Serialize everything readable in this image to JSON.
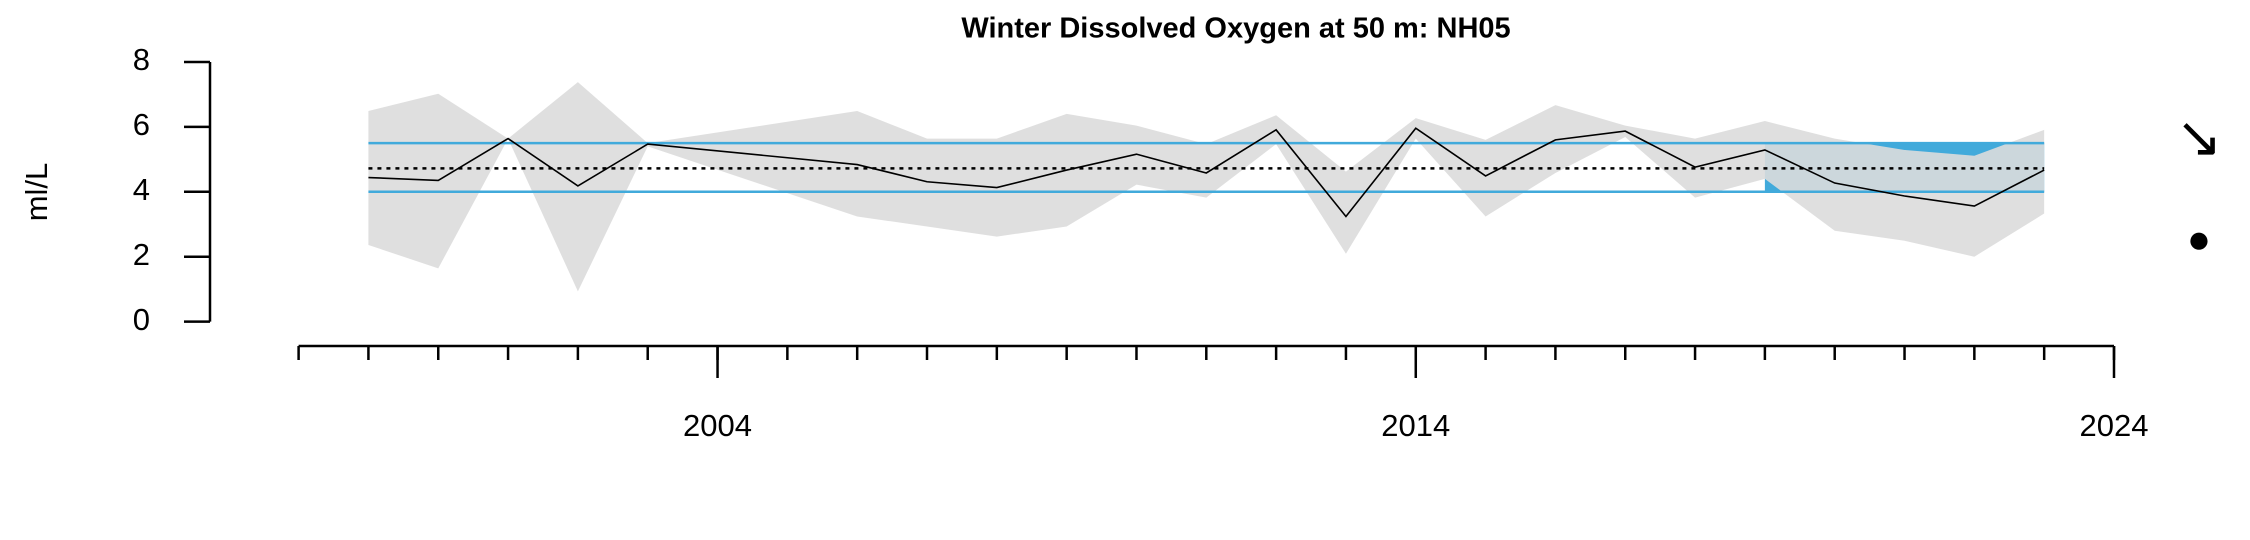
{
  "chart_data": {
    "type": "line",
    "title": "Winter Dissolved Oxygen at 50 m: NH05",
    "y_label": "ml/L",
    "x": [
      1999,
      2000,
      2001,
      2002,
      2003,
      2006,
      2007,
      2008,
      2009,
      2010,
      2011,
      2012,
      2013,
      2014,
      2015,
      2016,
      2017,
      2018,
      2019,
      2020,
      2021,
      2022,
      2023
    ],
    "values": [
      4.44,
      4.35,
      5.64,
      4.18,
      5.47,
      4.84,
      4.31,
      4.13,
      4.67,
      5.16,
      4.58,
      5.91,
      3.24,
      5.96,
      4.49,
      5.6,
      5.87,
      4.76,
      5.29,
      4.27,
      3.87,
      3.56,
      4.67
    ],
    "band_upper": [
      6.49,
      7.02,
      5.64,
      7.38,
      5.5,
      6.49,
      5.64,
      5.64,
      6.4,
      6.04,
      5.47,
      6.36,
      4.62,
      6.27,
      5.6,
      6.67,
      6.04,
      5.64,
      6.18,
      5.64,
      5.29,
      5.11,
      5.91
    ],
    "band_lower": [
      2.36,
      1.64,
      5.64,
      0.93,
      5.4,
      3.24,
      2.93,
      2.62,
      2.93,
      4.22,
      3.82,
      5.47,
      2.09,
      5.64,
      3.24,
      4.58,
      5.69,
      3.82,
      4.4,
      2.8,
      2.49,
      2.0,
      3.33
    ],
    "color": "#000000",
    "band_color": "#dcdcdc",
    "ref_color": "#41aadb",
    "mean": 4.72,
    "sd_upper": 5.5,
    "sd_lower": 4.0,
    "highlight_x": [
      2019,
      2023
    ],
    "xlim": [
      1998,
      2024
    ],
    "xticks": [
      2004,
      2014,
      2024
    ],
    "xminorticks": [
      1998,
      1999,
      2000,
      2001,
      2002,
      2003,
      2004,
      2005,
      2006,
      2007,
      2008,
      2009,
      2010,
      2011,
      2012,
      2013,
      2014,
      2015,
      2016,
      2017,
      2018,
      2019,
      2020,
      2021,
      2022,
      2023,
      2024
    ],
    "ylim": [
      0,
      8
    ],
    "yticks": [
      0,
      2,
      4,
      6,
      8
    ],
    "trend_symbol": "↘",
    "mean_symbol": "●"
  }
}
